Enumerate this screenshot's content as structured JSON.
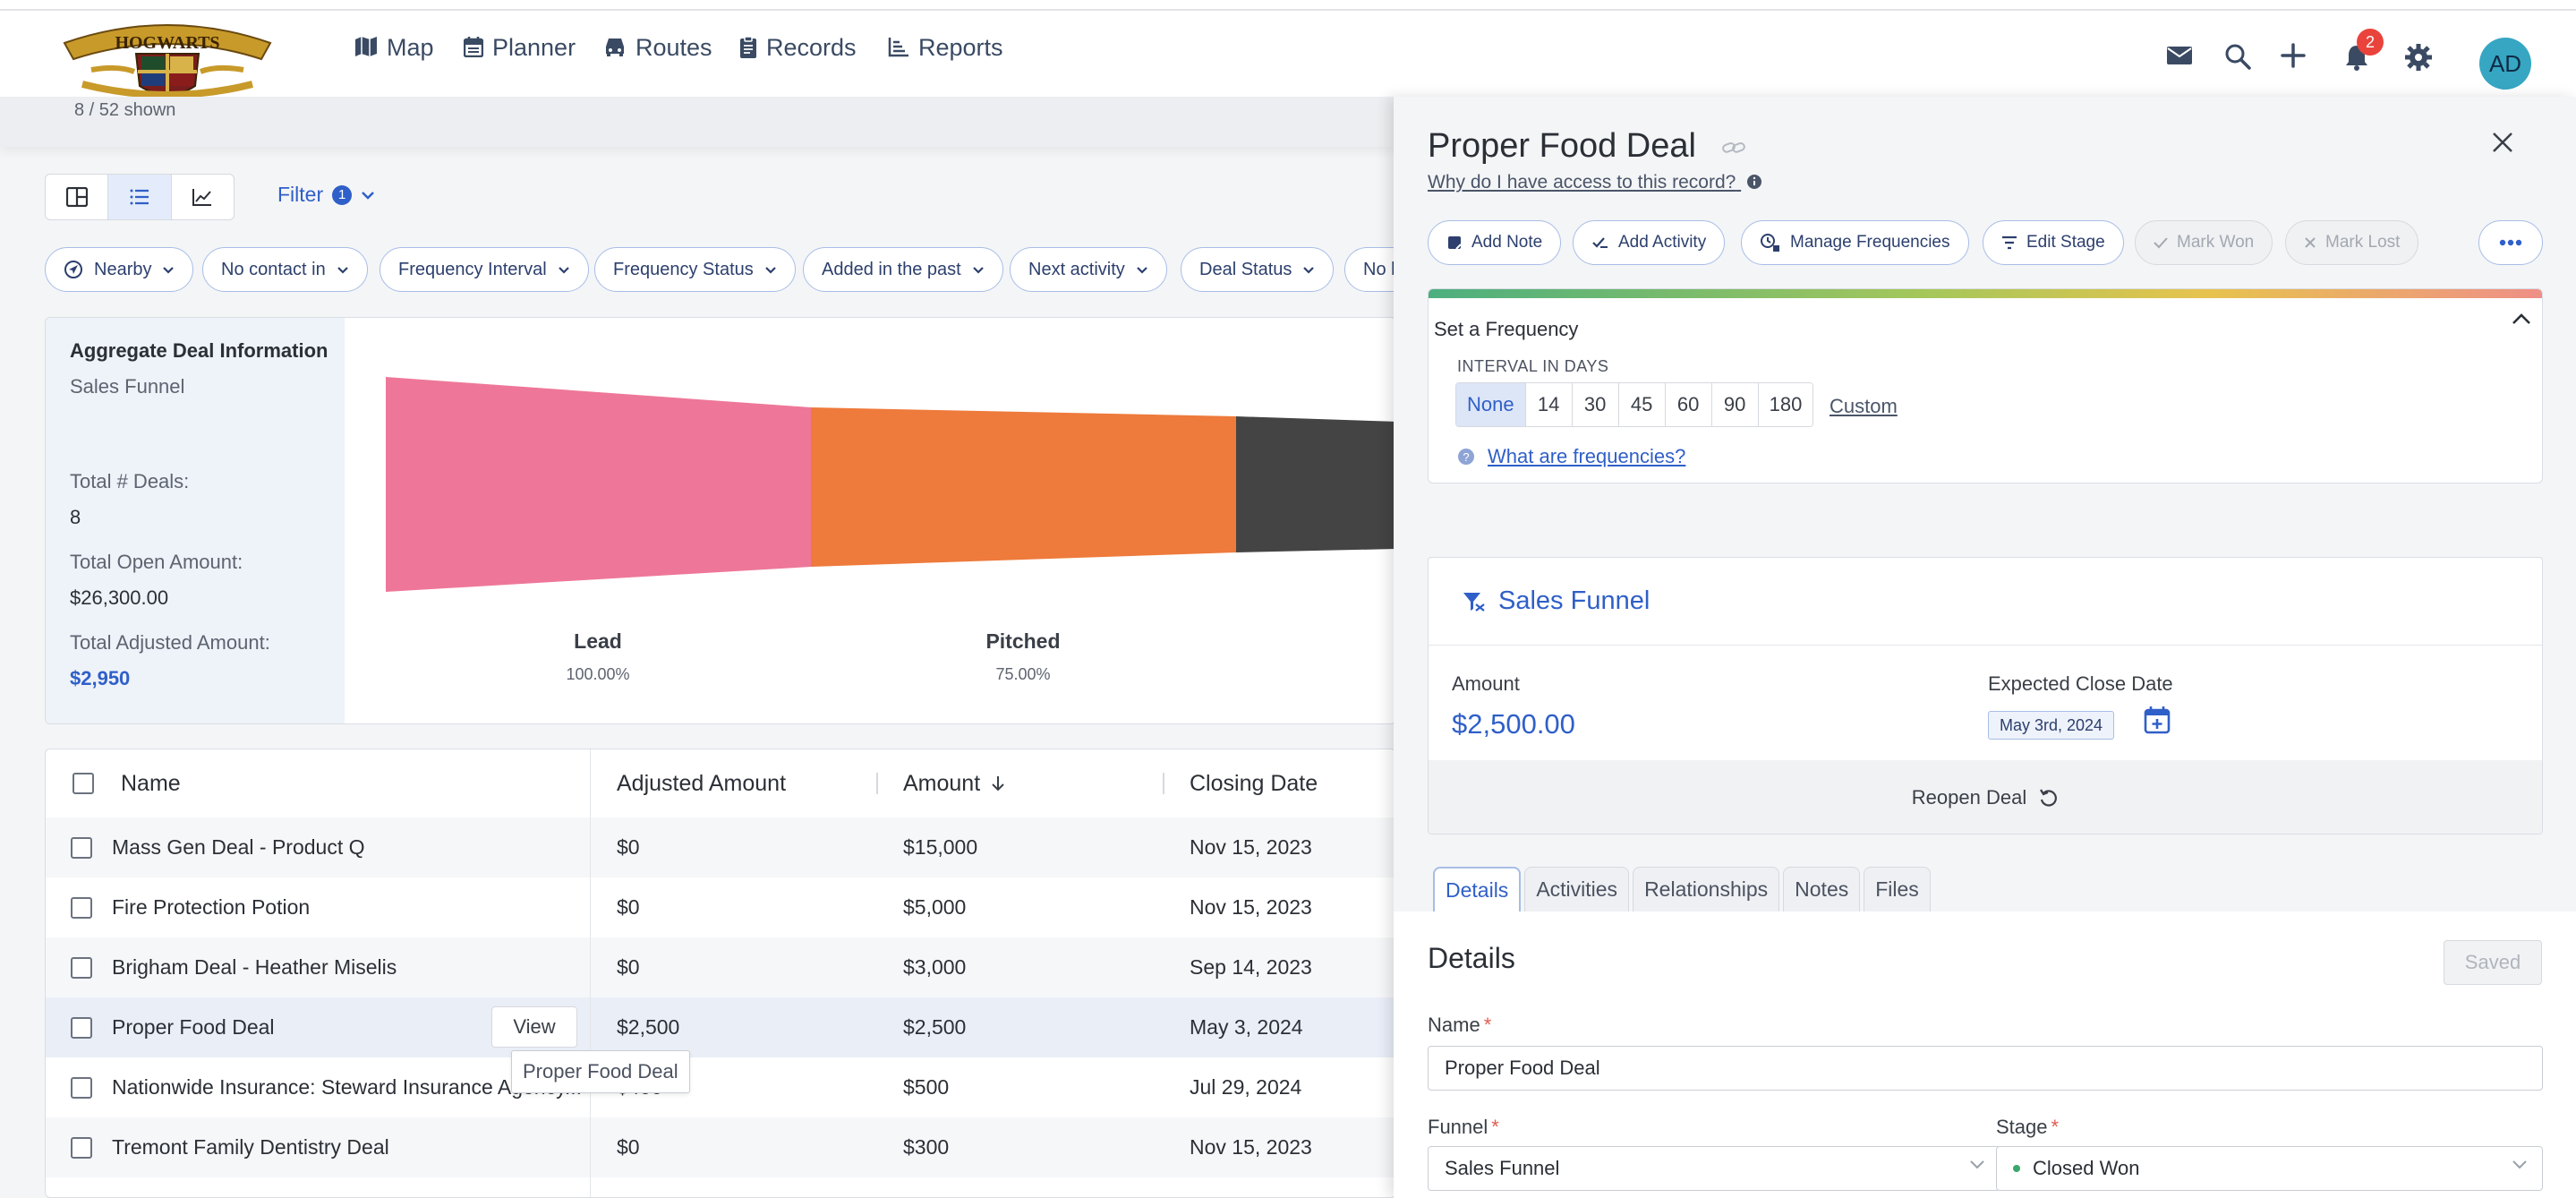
{
  "nav": {
    "items": [
      {
        "label": "Map",
        "icon": "map-icon"
      },
      {
        "label": "Planner",
        "icon": "calendar-icon"
      },
      {
        "label": "Routes",
        "icon": "car-icon"
      },
      {
        "label": "Records",
        "icon": "clipboard-icon"
      },
      {
        "label": "Reports",
        "icon": "chart-icon"
      }
    ],
    "active": "Records",
    "notification_count": "2",
    "avatar_initials": "AD",
    "logo_text": "HOGWARTS"
  },
  "list": {
    "shown_text": "8 / 52 shown",
    "filter_label": "Filter",
    "filter_count": "1",
    "chips": [
      "Nearby",
      "No contact in",
      "Frequency Interval",
      "Frequency Status",
      "Added in the past",
      "Next activity",
      "Deal Status",
      "No l"
    ]
  },
  "aggregate": {
    "title": "Aggregate Deal Information",
    "funnel": "Sales Funnel",
    "total_deals_label": "Total # Deals:",
    "total_deals": "8",
    "open_amount_label": "Total Open Amount:",
    "open_amount": "$26,300.00",
    "adjusted_amount_label": "Total Adjusted Amount:",
    "adjusted_amount": "$2,950",
    "stages": [
      {
        "name": "Lead",
        "percent": "100.00%",
        "color": "#ee7799"
      },
      {
        "name": "Pitched",
        "percent": "75.00%",
        "color": "#ee7a3b"
      },
      {
        "name": "",
        "percent": "",
        "color": "#444444"
      }
    ]
  },
  "table": {
    "columns": [
      "Name",
      "Adjusted Amount",
      "Amount",
      "Closing Date"
    ],
    "rows": [
      {
        "name": "Mass Gen Deal - Product Q",
        "adjusted": "$0",
        "amount": "$15,000",
        "closing": "Nov 15, 2023"
      },
      {
        "name": "Fire Protection Potion",
        "adjusted": "$0",
        "amount": "$5,000",
        "closing": "Nov 15, 2023"
      },
      {
        "name": "Brigham Deal - Heather Miselis",
        "adjusted": "$0",
        "amount": "$3,000",
        "closing": "Sep 14, 2023"
      },
      {
        "name": "Proper Food Deal",
        "adjusted": "$2,500",
        "amount": "$2,500",
        "closing": "May 3, 2024"
      },
      {
        "name": "Nationwide Insurance: Steward Insurance Agency...",
        "adjusted": "$400",
        "amount": "$500",
        "closing": "Jul 29, 2024"
      },
      {
        "name": "Tremont Family Dentistry Deal",
        "adjusted": "$0",
        "amount": "$300",
        "closing": "Nov 15, 2023"
      }
    ],
    "view_button": "View",
    "tooltip": "Proper Food Deal"
  },
  "panel": {
    "title": "Proper Food Deal",
    "access_link": "Why do I have access to this record?",
    "actions": [
      "Add Note",
      "Add Activity",
      "Manage Frequencies",
      "Edit Stage",
      "Mark Won",
      "Mark Lost"
    ],
    "frequency": {
      "title": "Set a Frequency",
      "interval_label": "INTERVAL IN DAYS",
      "options": [
        "None",
        "14",
        "30",
        "45",
        "60",
        "90",
        "180"
      ],
      "selected": "None",
      "custom": "Custom",
      "help": "What are frequencies?"
    },
    "funnel": {
      "title": "Sales Funnel",
      "amount_label": "Amount",
      "amount": "$2,500.00",
      "close_label": "Expected Close Date",
      "close_date": "May 3rd, 2024",
      "reopen": "Reopen Deal"
    },
    "tabs": [
      "Details",
      "Activities",
      "Relationships",
      "Notes",
      "Files"
    ],
    "active_tab": "Details",
    "details": {
      "title": "Details",
      "saved": "Saved",
      "name_label": "Name",
      "name_value": "Proper Food Deal",
      "funnel_label": "Funnel",
      "funnel_value": "Sales Funnel",
      "stage_label": "Stage",
      "stage_value": "Closed Won"
    }
  },
  "colors": {
    "accent": "#2f5fc8",
    "won_dot": "#3aa76d",
    "badge": "#e9433b"
  }
}
